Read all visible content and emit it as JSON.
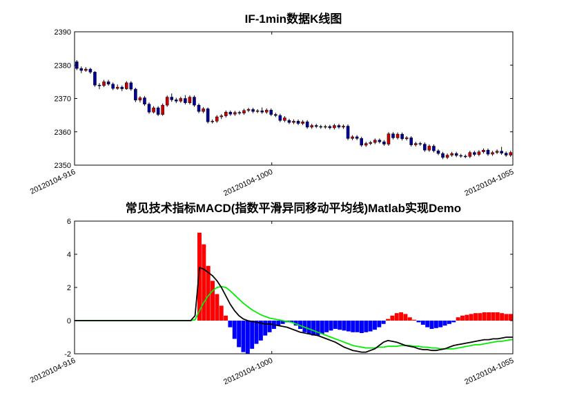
{
  "figure": {
    "background": "#ffffff"
  },
  "chart_data": [
    {
      "type": "candlestick",
      "title": "IF-1min数据K线图",
      "ylim": [
        2350,
        2390
      ],
      "yticks": [
        2350,
        2360,
        2370,
        2380,
        2390
      ],
      "xlim": [
        0,
        100
      ],
      "xticks": [
        {
          "x": 0,
          "label": "20120104-916"
        },
        {
          "x": 45,
          "label": "20120104-1000"
        },
        {
          "x": 100,
          "label": "20120104-1055"
        }
      ],
      "colors": {
        "up": "#cc0000",
        "down": "#000099",
        "wick": "#000000"
      },
      "candles": [
        [
          2381.0,
          2379.0,
          2381.5,
          2378.5
        ],
        [
          2379.0,
          2378.4,
          2379.6,
          2377.6
        ],
        [
          2378.4,
          2378.8,
          2379.4,
          2378.0
        ],
        [
          2378.8,
          2377.9,
          2379.2,
          2377.4
        ],
        [
          2377.9,
          2374.0,
          2378.2,
          2373.5
        ],
        [
          2374.0,
          2373.9,
          2374.6,
          2372.8
        ],
        [
          2373.9,
          2375.0,
          2375.6,
          2373.4
        ],
        [
          2375.0,
          2374.3,
          2375.6,
          2373.8
        ],
        [
          2374.3,
          2373.0,
          2374.8,
          2372.5
        ],
        [
          2373.0,
          2373.4,
          2374.2,
          2372.6
        ],
        [
          2373.4,
          2372.9,
          2373.9,
          2372.2
        ],
        [
          2372.9,
          2374.7,
          2375.2,
          2372.6
        ],
        [
          2374.7,
          2372.8,
          2375.2,
          2372.3
        ],
        [
          2372.8,
          2369.5,
          2373.2,
          2368.9
        ],
        [
          2369.5,
          2370.2,
          2370.7,
          2368.8
        ],
        [
          2370.2,
          2368.3,
          2370.7,
          2367.8
        ],
        [
          2368.3,
          2365.9,
          2368.8,
          2365.4
        ],
        [
          2365.9,
          2367.2,
          2367.7,
          2365.5
        ],
        [
          2367.2,
          2365.2,
          2367.7,
          2364.7
        ],
        [
          2365.2,
          2368.0,
          2368.5,
          2364.8
        ],
        [
          2368.0,
          2370.4,
          2370.9,
          2367.5
        ],
        [
          2370.4,
          2369.6,
          2371.5,
          2369.0
        ],
        [
          2369.6,
          2369.2,
          2370.2,
          2368.6
        ],
        [
          2369.2,
          2370.0,
          2370.5,
          2368.7
        ],
        [
          2370.0,
          2368.7,
          2371.0,
          2368.2
        ],
        [
          2368.7,
          2370.4,
          2370.9,
          2368.2
        ],
        [
          2370.4,
          2368.0,
          2370.9,
          2367.5
        ],
        [
          2368.0,
          2366.1,
          2368.5,
          2365.6
        ],
        [
          2366.1,
          2366.9,
          2367.4,
          2365.6
        ],
        [
          2366.9,
          2363.0,
          2367.3,
          2362.5
        ],
        [
          2363.0,
          2363.2,
          2363.7,
          2362.5
        ],
        [
          2363.2,
          2364.5,
          2365.0,
          2362.7
        ],
        [
          2364.5,
          2364.8,
          2365.3,
          2363.8
        ],
        [
          2364.8,
          2365.9,
          2366.4,
          2364.3
        ],
        [
          2365.9,
          2365.3,
          2366.4,
          2364.8
        ],
        [
          2365.3,
          2365.8,
          2366.3,
          2364.8
        ],
        [
          2365.8,
          2365.6,
          2366.3,
          2365.1
        ],
        [
          2365.6,
          2366.4,
          2366.9,
          2365.1
        ],
        [
          2366.4,
          2366.7,
          2367.2,
          2365.9
        ],
        [
          2366.7,
          2366.1,
          2367.2,
          2365.6
        ],
        [
          2366.1,
          2366.3,
          2366.8,
          2365.6
        ],
        [
          2366.3,
          2365.9,
          2367.3,
          2365.4
        ],
        [
          2365.9,
          2366.5,
          2367.0,
          2365.4
        ],
        [
          2366.5,
          2365.2,
          2367.0,
          2364.7
        ],
        [
          2365.2,
          2364.9,
          2365.7,
          2364.4
        ],
        [
          2364.9,
          2363.4,
          2365.4,
          2362.9
        ],
        [
          2363.4,
          2364.2,
          2364.7,
          2362.9
        ],
        [
          2363.4,
          2362.8,
          2363.9,
          2362.3
        ],
        [
          2362.8,
          2363.2,
          2363.7,
          2362.3
        ],
        [
          2363.2,
          2362.5,
          2363.7,
          2362.0
        ],
        [
          2362.5,
          2363.0,
          2363.5,
          2362.0
        ],
        [
          2363.0,
          2361.4,
          2363.5,
          2360.9
        ],
        [
          2361.4,
          2361.9,
          2362.4,
          2360.9
        ],
        [
          2361.9,
          2361.6,
          2362.4,
          2361.1
        ],
        [
          2361.6,
          2361.4,
          2362.1,
          2360.9
        ],
        [
          2361.4,
          2361.6,
          2362.1,
          2360.9
        ],
        [
          2361.6,
          2361.2,
          2362.1,
          2360.7
        ],
        [
          2361.2,
          2361.9,
          2362.4,
          2360.7
        ],
        [
          2361.9,
          2361.4,
          2362.4,
          2360.9
        ],
        [
          2361.4,
          2361.7,
          2362.2,
          2360.9
        ],
        [
          2361.7,
          2358.0,
          2362.2,
          2357.5
        ],
        [
          2358.0,
          2358.5,
          2359.0,
          2357.5
        ],
        [
          2358.5,
          2358.0,
          2359.0,
          2357.5
        ],
        [
          2358.0,
          2356.0,
          2358.5,
          2355.5
        ],
        [
          2356.0,
          2356.5,
          2357.0,
          2355.5
        ],
        [
          2356.5,
          2356.8,
          2357.3,
          2356.0
        ],
        [
          2356.8,
          2357.5,
          2358.0,
          2356.3
        ],
        [
          2357.5,
          2357.0,
          2358.0,
          2356.5
        ],
        [
          2357.0,
          2356.3,
          2357.5,
          2355.8
        ],
        [
          2356.3,
          2359.4,
          2359.9,
          2355.8
        ],
        [
          2359.4,
          2358.2,
          2359.9,
          2357.7
        ],
        [
          2358.2,
          2359.3,
          2359.8,
          2357.7
        ],
        [
          2359.3,
          2357.9,
          2359.8,
          2357.4
        ],
        [
          2357.9,
          2358.2,
          2358.7,
          2357.4
        ],
        [
          2358.2,
          2356.1,
          2358.7,
          2355.6
        ],
        [
          2356.1,
          2356.5,
          2357.0,
          2355.6
        ],
        [
          2356.5,
          2356.3,
          2357.0,
          2355.8
        ],
        [
          2356.3,
          2354.5,
          2356.8,
          2354.0
        ],
        [
          2354.5,
          2355.7,
          2356.2,
          2354.0
        ],
        [
          2355.7,
          2354.3,
          2356.2,
          2353.8
        ],
        [
          2354.3,
          2353.5,
          2354.8,
          2353.0
        ],
        [
          2353.5,
          2352.3,
          2354.0,
          2351.8
        ],
        [
          2352.3,
          2353.0,
          2353.5,
          2351.8
        ],
        [
          2353.0,
          2353.5,
          2354.0,
          2352.5
        ],
        [
          2353.5,
          2352.9,
          2354.0,
          2352.4
        ],
        [
          2352.9,
          2352.7,
          2353.4,
          2352.2
        ],
        [
          2352.7,
          2352.6,
          2353.2,
          2352.1
        ],
        [
          2352.6,
          2353.8,
          2354.3,
          2352.1
        ],
        [
          2353.8,
          2353.2,
          2354.3,
          2352.7
        ],
        [
          2353.2,
          2354.0,
          2354.5,
          2352.7
        ],
        [
          2354.0,
          2354.5,
          2355.0,
          2353.5
        ],
        [
          2354.5,
          2353.3,
          2355.0,
          2352.8
        ],
        [
          2353.3,
          2353.8,
          2354.3,
          2352.8
        ],
        [
          2353.8,
          2354.2,
          2354.7,
          2353.3
        ],
        [
          2354.2,
          2353.6,
          2355.5,
          2353.1
        ],
        [
          2353.6,
          2353.0,
          2354.1,
          2352.5
        ],
        [
          2353.0,
          2353.8,
          2354.3,
          2352.5
        ]
      ]
    },
    {
      "type": "bar+line",
      "title": "常见技术指标MACD(指数平滑异同移动平均线)Matlab实现Demo",
      "ylim": [
        -2,
        6
      ],
      "yticks": [
        -2,
        0,
        2,
        4,
        6
      ],
      "xlim": [
        0,
        100
      ],
      "xticks": [
        {
          "x": 0,
          "label": "20120104-916"
        },
        {
          "x": 45,
          "label": "20120104-1000"
        },
        {
          "x": 100,
          "label": "20120104-1055"
        }
      ],
      "colors": {
        "pos": "#ff0000",
        "neg": "#0000ff",
        "dif": "#000000",
        "dea": "#00ee00"
      },
      "hist": [
        0,
        0,
        0,
        0,
        0,
        0,
        0,
        0,
        0,
        0,
        0,
        0,
        0,
        0,
        0,
        0,
        0,
        0,
        0,
        0,
        0,
        0,
        0,
        0,
        0,
        0,
        0,
        0,
        5.3,
        4.6,
        3.3,
        2.4,
        1.6,
        0.9,
        0.3,
        -0.4,
        -1.1,
        -1.6,
        -1.9,
        -2.0,
        -1.7,
        -1.4,
        -1.2,
        -0.9,
        -0.7,
        -0.5,
        -0.3,
        -0.2,
        -0.1,
        -0.1,
        -0.3,
        -0.5,
        -0.7,
        -0.8,
        -0.9,
        -0.9,
        -0.8,
        -0.7,
        -0.6,
        -0.5,
        -0.55,
        -0.6,
        -0.65,
        -0.7,
        -0.7,
        -0.75,
        -0.7,
        -0.65,
        -0.55,
        -0.4,
        -0.2,
        0.1,
        0.3,
        0.45,
        0.5,
        0.4,
        0.2,
        0.05,
        -0.1,
        -0.25,
        -0.4,
        -0.5,
        -0.45,
        -0.4,
        -0.3,
        -0.2,
        -0.1,
        0.2,
        0.3,
        0.35,
        0.4,
        0.45,
        0.45,
        0.5,
        0.5,
        0.5,
        0.5,
        0.45,
        0.4,
        0.4
      ],
      "dif": [
        0,
        0,
        0,
        0,
        0,
        0,
        0,
        0,
        0,
        0,
        0,
        0,
        0,
        0,
        0,
        0,
        0,
        0,
        0,
        0,
        0,
        0,
        0,
        0,
        0,
        0,
        0,
        0.3,
        3.2,
        3.1,
        2.9,
        2.7,
        2.4,
        2.0,
        1.5,
        1.0,
        0.6,
        0.3,
        0.1,
        0.0,
        -0.05,
        -0.1,
        -0.15,
        -0.2,
        -0.2,
        -0.25,
        -0.3,
        -0.35,
        -0.4,
        -0.5,
        -0.6,
        -0.7,
        -0.75,
        -0.8,
        -0.85,
        -0.9,
        -1.0,
        -1.1,
        -1.2,
        -1.3,
        -1.45,
        -1.6,
        -1.7,
        -1.8,
        -1.85,
        -1.9,
        -1.9,
        -1.8,
        -1.7,
        -1.5,
        -1.3,
        -1.2,
        -1.25,
        -1.3,
        -1.4,
        -1.5,
        -1.55,
        -1.6,
        -1.7,
        -1.75,
        -1.75,
        -1.8,
        -1.8,
        -1.75,
        -1.7,
        -1.6,
        -1.5,
        -1.45,
        -1.4,
        -1.35,
        -1.3,
        -1.25,
        -1.2,
        -1.15,
        -1.15,
        -1.1,
        -1.1,
        -1.05,
        -1.0,
        -1.0
      ],
      "dea": [
        0,
        0,
        0,
        0,
        0,
        0,
        0,
        0,
        0,
        0,
        0,
        0,
        0,
        0,
        0,
        0,
        0,
        0,
        0,
        0,
        0,
        0,
        0,
        0,
        0,
        0,
        0,
        0.05,
        0.6,
        1.1,
        1.5,
        1.8,
        2.0,
        2.05,
        2.0,
        1.8,
        1.55,
        1.3,
        1.05,
        0.85,
        0.65,
        0.5,
        0.35,
        0.25,
        0.15,
        0.1,
        0.05,
        0.0,
        -0.05,
        -0.1,
        -0.2,
        -0.3,
        -0.4,
        -0.5,
        -0.6,
        -0.7,
        -0.8,
        -0.9,
        -1.0,
        -1.1,
        -1.2,
        -1.3,
        -1.4,
        -1.5,
        -1.55,
        -1.6,
        -1.65,
        -1.65,
        -1.65,
        -1.6,
        -1.6,
        -1.55,
        -1.55,
        -1.55,
        -1.5,
        -1.5,
        -1.5,
        -1.55,
        -1.55,
        -1.6,
        -1.6,
        -1.65,
        -1.65,
        -1.7,
        -1.7,
        -1.7,
        -1.7,
        -1.65,
        -1.6,
        -1.55,
        -1.5,
        -1.45,
        -1.45,
        -1.4,
        -1.35,
        -1.3,
        -1.25,
        -1.25,
        -1.2,
        -1.15
      ]
    }
  ]
}
